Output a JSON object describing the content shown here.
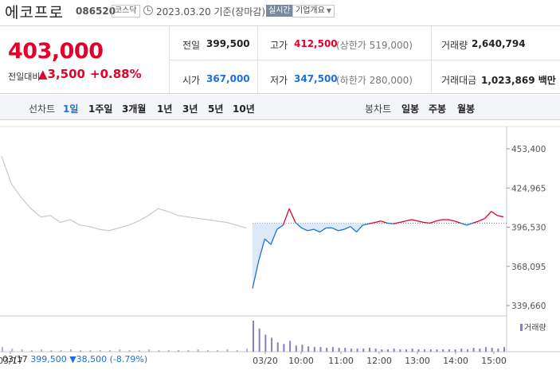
{
  "header": {
    "name": "에코프로",
    "code": "086520",
    "market": "코스닥",
    "date_text": "2023.03.20 기준(장마감)",
    "realtime_label": "실시간",
    "company_label": "기업개요"
  },
  "quote": {
    "price": "403,000",
    "change_label": "전일대비",
    "change": "▲3,500",
    "change_pct": "+0.88%",
    "prev_label": "전일",
    "prev_value": "399,500",
    "high_label": "고가",
    "high_value": "412,500",
    "upper_limit": "(상한가 519,000)",
    "volume_label": "거래량",
    "volume_value": "2,640,794",
    "open_label": "시가",
    "open_value": "367,000",
    "low_label": "저가",
    "low_value": "347,500",
    "lower_limit": "(하한가 280,000)",
    "amount_label": "거래대금",
    "amount_value": "1,023,869 백만"
  },
  "tabs": {
    "line_label": "선차트",
    "line_tabs": [
      "1일",
      "1주일",
      "3개월",
      "1년",
      "3년",
      "5년",
      "10년"
    ],
    "active_index": 0,
    "candle_label": "봉차트",
    "candle_tabs": [
      "일봉",
      "주봉",
      "월봉"
    ]
  },
  "chart_data": {
    "type": "line",
    "y_ticks": [
      "453,400",
      "424,965",
      "396,530",
      "368,095",
      "339,660"
    ],
    "ylim": [
      339660,
      453400
    ],
    "x_ticks": [
      "03/17",
      "03/20",
      "10:00",
      "11:00",
      "12:00",
      "13:00",
      "14:00",
      "15:00"
    ],
    "reference_price": 399500,
    "prev_day_series": [
      448000,
      428000,
      418000,
      410000,
      404000,
      405000,
      400000,
      402000,
      398000,
      397000,
      395000,
      394000,
      396000,
      398000,
      401000,
      405000,
      410000,
      408000,
      405000,
      404000,
      403000,
      402000,
      401000,
      400000,
      398000,
      396000
    ],
    "today_series": [
      352000,
      372000,
      388000,
      384000,
      395000,
      398000,
      410000,
      400000,
      396000,
      394000,
      395000,
      393000,
      396000,
      396000,
      394000,
      395000,
      397000,
      393000,
      398000,
      399000,
      400000,
      401000,
      399500,
      399000,
      400000,
      401000,
      402000,
      401000,
      400000,
      399500,
      401000,
      402000,
      402000,
      401000,
      399500,
      398000,
      399500,
      401000,
      403000,
      408000,
      405000,
      404000
    ],
    "volume_label": "거래량",
    "prev_volume": [
      6,
      4,
      3,
      2,
      3,
      2,
      2,
      3,
      2,
      2,
      2,
      2,
      3,
      2,
      2,
      3,
      2,
      2,
      2,
      2,
      3,
      2,
      2,
      3,
      2,
      4
    ],
    "today_volume": [
      40,
      30,
      22,
      18,
      12,
      10,
      14,
      8,
      9,
      7,
      6,
      6,
      5,
      6,
      5,
      5,
      4,
      4,
      4,
      5,
      4,
      3,
      3,
      4,
      3,
      3,
      4,
      3,
      3,
      3,
      3,
      3,
      3,
      3,
      4,
      3,
      5,
      4,
      6,
      5,
      4,
      6
    ]
  },
  "footer": {
    "date": "03/17",
    "price": "399,500",
    "change": "▼38,500",
    "pct": "(-8.79%)"
  },
  "colors": {
    "up": "#e4002b",
    "down": "#1d6fd9",
    "prev_line": "#c8c8c8",
    "volume": "#8b7dbd"
  }
}
